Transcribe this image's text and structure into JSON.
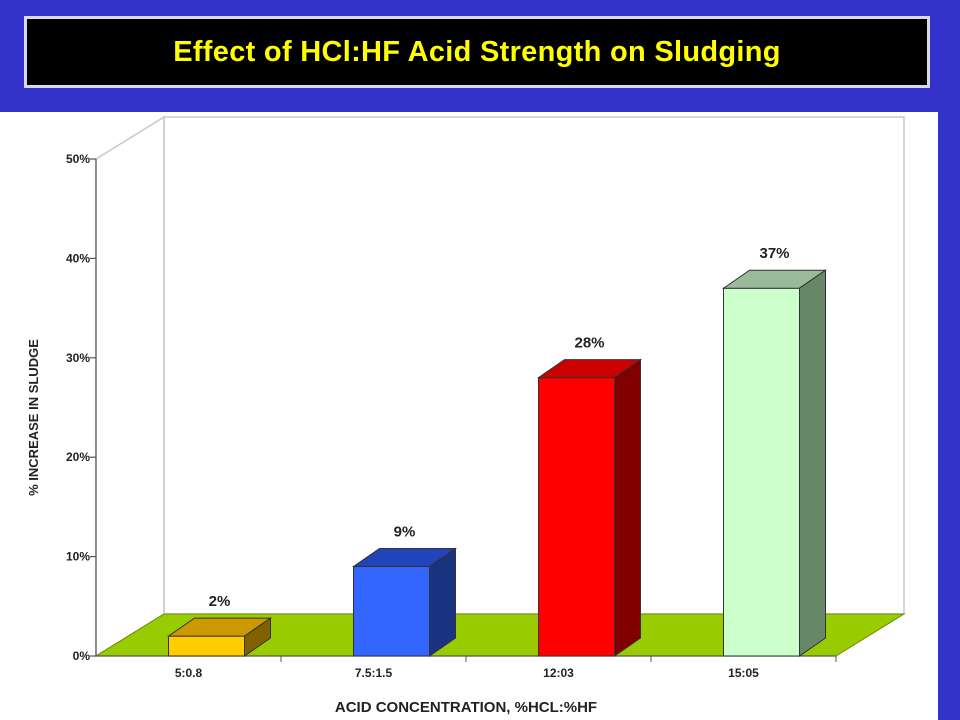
{
  "title": "Effect of HCl:HF Acid Strength on Sludging",
  "colors": {
    "background": "#3333cc",
    "title_bar": "#000000",
    "title_text": "#ffff00",
    "floor": "#99cc00"
  },
  "chart_data": {
    "type": "bar",
    "style": "3d",
    "title": "Effect of HCl:HF Acid Strength on Sludging",
    "xlabel": "ACID CONCENTRATION, %HCL:%HF",
    "ylabel": "% INCREASE IN SLUDGE",
    "categories": [
      "5:0.8",
      "7.5:1.5",
      "12:03",
      "15:05"
    ],
    "values": [
      2,
      9,
      28,
      37
    ],
    "data_labels": [
      "2%",
      "9%",
      "28%",
      "37%"
    ],
    "ylim": [
      0,
      50
    ],
    "yticks": [
      0,
      10,
      20,
      30,
      40,
      50
    ],
    "ytick_labels": [
      "0%",
      "10%",
      "20%",
      "30%",
      "40%",
      "50%"
    ],
    "bar_colors": [
      {
        "front": "#ffcc00",
        "top": "#cc9900",
        "side": "#806000"
      },
      {
        "front": "#3366ff",
        "top": "#2244bb",
        "side": "#1a3380"
      },
      {
        "front": "#ff0000",
        "top": "#cc0000",
        "side": "#800000"
      },
      {
        "front": "#ccffcc",
        "top": "#99bb99",
        "side": "#668866"
      }
    ],
    "grid": false,
    "legend": "none"
  }
}
